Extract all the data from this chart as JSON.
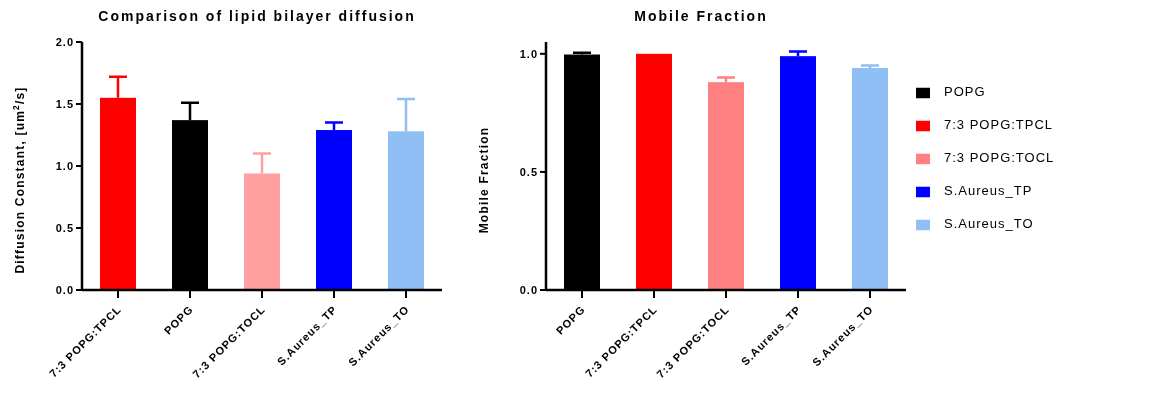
{
  "chart_data": [
    {
      "type": "bar",
      "title": "Comparison of lipid bilayer diffusion",
      "ylabel": "Diffusion Constant, [um$^{2}$/s]",
      "categories": [
        "7:3 POPG:TPCL",
        "POPG",
        "7:3 POPG:TOCL",
        "S.Aureus_TP",
        "S.Aureus_TO"
      ],
      "values": [
        1.55,
        1.37,
        0.94,
        1.29,
        1.28
      ],
      "colors": [
        "#ff0000",
        "#000000",
        "#ffa0a0",
        "#0000ff",
        "#90bff5"
      ],
      "errors": [
        [
          1.55,
          1.72
        ],
        [
          1.37,
          1.51
        ],
        [
          0.94,
          1.1
        ],
        [
          1.29,
          1.35
        ],
        [
          1.28,
          1.54
        ]
      ],
      "ylim": [
        0,
        2
      ],
      "yticks": [
        {
          "value": 0,
          "label": "0.0"
        },
        {
          "value": 0.5,
          "label": "0.5"
        },
        {
          "value": 1,
          "label": "1.0"
        },
        {
          "value": 1.5,
          "label": "1.5"
        },
        {
          "value": 2,
          "label": "2.0"
        }
      ],
      "grid": false,
      "legend": false
    },
    {
      "type": "bar",
      "title": "Mobile Fraction",
      "ylabel": "Mobile Fraction",
      "categories": [
        "POPG",
        "7:3 POPG:TPCL",
        "7:3 POPG:TOCL",
        "S.Aureus_TP",
        "S.Aureus_TO"
      ],
      "stacked": true,
      "series": [
        {
          "name": "POPG",
          "color": "#000000",
          "values": [
            0.997,
            null,
            null,
            null,
            null
          ],
          "errors": [
            [
              0.997,
              1.005
            ],
            null,
            null,
            null,
            null
          ]
        },
        {
          "name": "7:3 POPG:TPCL",
          "color": "#ff0000",
          "values": [
            null,
            1.0,
            null,
            null,
            null
          ]
        },
        {
          "name": "7:3 POPG:TOCL",
          "color": "#ff8080",
          "values": [
            null,
            null,
            0.88,
            null,
            null
          ],
          "errors": [
            null,
            null,
            [
              0.88,
              0.9
            ],
            null,
            null
          ]
        },
        {
          "name": "S.Aureus_TP",
          "color": "#0000ff",
          "values": [
            null,
            null,
            null,
            0.99,
            null
          ],
          "errors": [
            null,
            null,
            null,
            [
              0.99,
              1.01
            ],
            null
          ]
        },
        {
          "name": "S.Aureus_TO",
          "color": "#90bff5",
          "values": [
            null,
            null,
            null,
            null,
            0.94
          ],
          "errors": [
            null,
            null,
            null,
            null,
            [
              0.94,
              0.95
            ]
          ]
        }
      ],
      "ylim": [
        0,
        1.05
      ],
      "yticks": [
        {
          "value": 0,
          "label": "0.0"
        },
        {
          "value": 0.5,
          "label": "0.5"
        },
        {
          "value": 1,
          "label": "1.0"
        }
      ],
      "grid": false,
      "legend": "right"
    }
  ]
}
